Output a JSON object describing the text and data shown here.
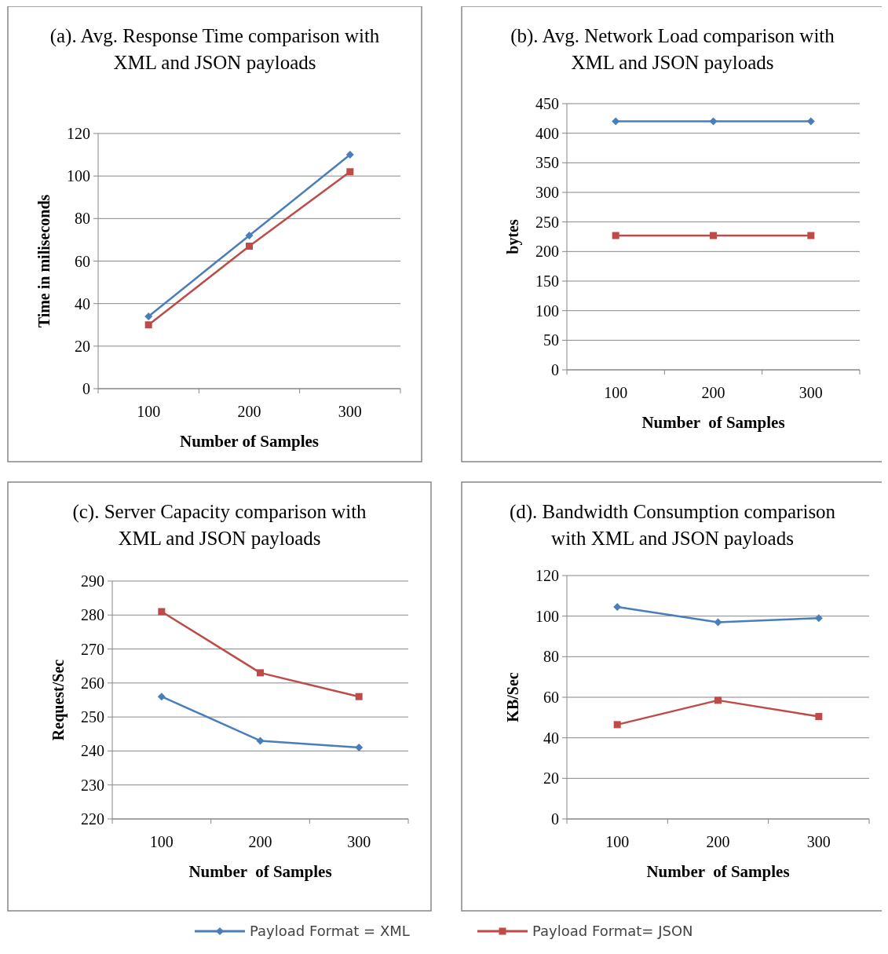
{
  "chart_data": [
    {
      "type": "line",
      "title": "(a). Avg. Response Time comparison with XML and JSON payloads",
      "xlabel": "Number of Samples",
      "ylabel": "Time in miliseconds",
      "categories": [
        "100",
        "200",
        "300"
      ],
      "ylim": [
        0,
        120
      ],
      "yticks": [
        0,
        20,
        40,
        60,
        80,
        100,
        120
      ],
      "grid": "y",
      "legend": "bottom",
      "series": [
        {
          "name": "Payload Format = XML",
          "color": "#4a7ebb",
          "marker": "diamond",
          "values": [
            34,
            72,
            110
          ]
        },
        {
          "name": "Payload Format= JSON",
          "color": "#be4b48",
          "marker": "square",
          "values": [
            30,
            67,
            102
          ]
        }
      ]
    },
    {
      "type": "line",
      "title": "(b). Avg. Network Load comparison with XML and JSON payloads",
      "xlabel": "Number  of Samples",
      "ylabel": "bytes",
      "categories": [
        "100",
        "200",
        "300"
      ],
      "ylim": [
        0,
        450
      ],
      "yticks": [
        0,
        50,
        100,
        150,
        200,
        250,
        300,
        350,
        400,
        450
      ],
      "grid": "y",
      "series": [
        {
          "color": "#4a7ebb",
          "marker": "diamond",
          "values": [
            420,
            420,
            420
          ]
        },
        {
          "color": "#be4b48",
          "marker": "square",
          "values": [
            227,
            227,
            227
          ]
        }
      ]
    },
    {
      "type": "line",
      "title": "(c). Server Capacity comparison with XML and JSON payloads",
      "xlabel": "Number  of Samples",
      "ylabel": "Request/Sec",
      "categories": [
        "100",
        "200",
        "300"
      ],
      "ylim": [
        220,
        290
      ],
      "yticks": [
        220,
        230,
        240,
        250,
        260,
        270,
        280,
        290
      ],
      "grid": "y",
      "series": [
        {
          "color": "#4a7ebb",
          "marker": "diamond",
          "values": [
            256,
            243,
            241
          ]
        },
        {
          "color": "#be4b48",
          "marker": "square",
          "values": [
            281,
            263,
            256
          ]
        }
      ]
    },
    {
      "type": "line",
      "title": "(d). Bandwidth Consumption comparison with XML and JSON payloads",
      "xlabel": "Number  of Samples",
      "ylabel": "KB/Sec",
      "categories": [
        "100",
        "200",
        "300"
      ],
      "ylim": [
        0,
        120
      ],
      "yticks": [
        0,
        20,
        40,
        60,
        80,
        100,
        120
      ],
      "grid": "y",
      "series": [
        {
          "color": "#4a7ebb",
          "marker": "diamond",
          "values": [
            104.5,
            97,
            99
          ]
        },
        {
          "color": "#be4b48",
          "marker": "square",
          "values": [
            46.5,
            58.5,
            50.5
          ]
        }
      ]
    }
  ]
}
